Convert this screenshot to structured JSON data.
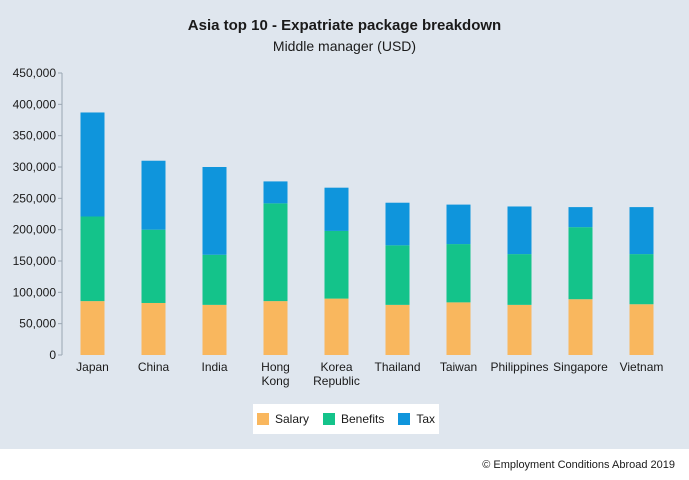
{
  "chart_data": {
    "type": "bar",
    "stacked": true,
    "title": "Asia top 10 - Expatriate package breakdown",
    "subtitle": "Middle manager (USD)",
    "categories": [
      [
        "Japan"
      ],
      [
        "China"
      ],
      [
        "India"
      ],
      [
        "Hong",
        "Kong"
      ],
      [
        "Korea",
        "Republic"
      ],
      [
        "Thailand"
      ],
      [
        "Taiwan"
      ],
      [
        "Philippines"
      ],
      [
        "Singapore"
      ],
      [
        "Vietnam"
      ]
    ],
    "series": [
      {
        "name": "Salary",
        "color": "#f9b75e",
        "values": [
          86000,
          83000,
          80000,
          86000,
          90000,
          80000,
          84000,
          80000,
          89000,
          81000
        ]
      },
      {
        "name": "Benefits",
        "color": "#14c38a",
        "values": [
          135000,
          117000,
          80000,
          156000,
          108000,
          95000,
          93000,
          81000,
          115000,
          80000
        ]
      },
      {
        "name": "Tax",
        "color": "#0f95dc",
        "values": [
          166000,
          110000,
          140000,
          35000,
          69000,
          68000,
          63000,
          76000,
          32000,
          75000
        ]
      }
    ],
    "ylim": [
      0,
      450000
    ],
    "yticks": [
      "0",
      "50,000",
      "100,000",
      "150,000",
      "200,000",
      "250,000",
      "300,000",
      "350,000",
      "400,000",
      "450,000"
    ],
    "grid": false,
    "legend": "bottom"
  },
  "footer": "© Employment Conditions Abroad 2019"
}
